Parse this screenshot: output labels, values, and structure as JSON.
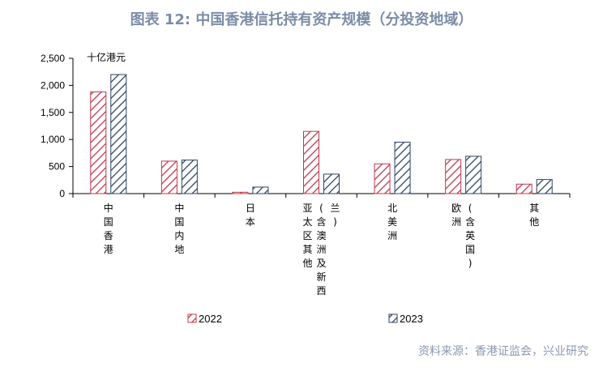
{
  "title": "图表 12: 中国香港信托持有资产规模（分投资地域）",
  "source": "资料来源：香港证监会，兴业研究",
  "colors": {
    "s2022": "#c0384e",
    "s2023": "#2f4560"
  },
  "chart_data": {
    "type": "bar",
    "unit_label": "十亿港元",
    "categories": [
      "中国香港",
      "中国内地",
      "日本",
      "亚太区其他（含澳洲及新西兰）",
      "北美洲",
      "欧洲（含英国）",
      "其他"
    ],
    "category_lines": [
      [
        [
          "中",
          "国",
          "香",
          "港"
        ]
      ],
      [
        [
          "中",
          "国",
          "内",
          "地"
        ]
      ],
      [
        [
          "日",
          "本"
        ]
      ],
      [
        [
          "亚",
          "太",
          "区",
          "其",
          "他"
        ],
        [
          "(",
          "含",
          "澳",
          "洲",
          "及",
          "新",
          "西"
        ],
        [
          "兰",
          ")"
        ]
      ],
      [
        [
          "北",
          "美",
          "洲"
        ]
      ],
      [
        [
          "欧",
          "洲"
        ],
        [
          "(",
          "含",
          "英",
          "国",
          ")"
        ]
      ],
      [
        [
          "其",
          "他"
        ]
      ]
    ],
    "series": [
      {
        "name": "2022",
        "values": [
          1880,
          600,
          25,
          1150,
          550,
          630,
          175
        ]
      },
      {
        "name": "2023",
        "values": [
          2200,
          620,
          120,
          360,
          950,
          690,
          260
        ]
      }
    ],
    "ylim": [
      0,
      2500
    ],
    "yticks": [
      0,
      500,
      1000,
      1500,
      2000,
      2500
    ],
    "ytick_labels": [
      "0",
      "500",
      "1,000",
      "1,500",
      "2,000",
      "2,500"
    ],
    "legend_position": "bottom",
    "grid": false
  }
}
